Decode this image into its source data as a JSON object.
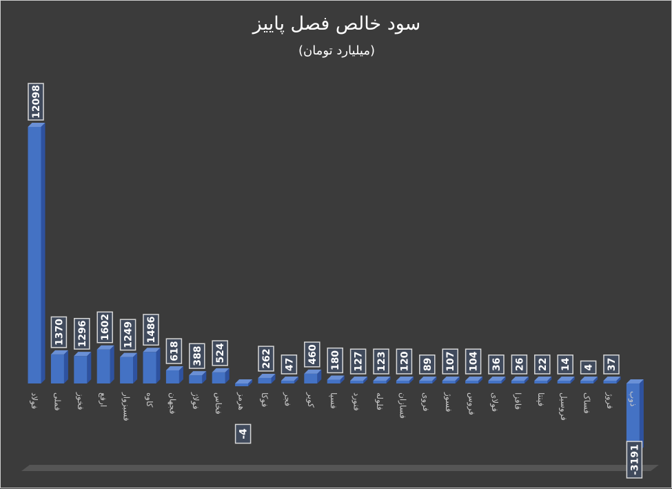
{
  "chart_data": {
    "type": "bar",
    "title": "سود خالص فصل پاییز",
    "subtitle": "(میلیارد تومان)",
    "xlabel": "",
    "ylabel": "",
    "ylim": [
      -3191,
      12098
    ],
    "grid": false,
    "legend": "none",
    "categories": [
      "فولاد",
      "فملی",
      "فخوز",
      "ارفع",
      "فسبزوار",
      "کاوه",
      "فجهان",
      "فولاژ",
      "فخاس",
      "هرمز",
      "فوکا",
      "فجر",
      "کویر",
      "فسپا",
      "فنورد",
      "فلوله",
      "فسازان",
      "فروی",
      "فسوژ",
      "فروس",
      "فولای",
      "فافزا",
      "فپنتا",
      "فروسیل",
      "فساک",
      "فروژ",
      "ذوب"
    ],
    "values": [
      12098,
      1370,
      1296,
      1602,
      1249,
      1486,
      618,
      388,
      524,
      -4,
      262,
      47,
      460,
      180,
      127,
      123,
      120,
      89,
      107,
      104,
      36,
      26,
      22,
      14,
      4,
      37,
      -3191
    ],
    "colors": {
      "background": "#3b3b3b",
      "bar_front": "#4472c4",
      "bar_side": "#2e52a0",
      "bar_top": "#6a90d6",
      "label_fill": "#404a5c",
      "label_stroke": "#d8d8d8",
      "text": "#ffffff",
      "axis_text": "#c8c8c8",
      "floor": "#555555"
    }
  }
}
